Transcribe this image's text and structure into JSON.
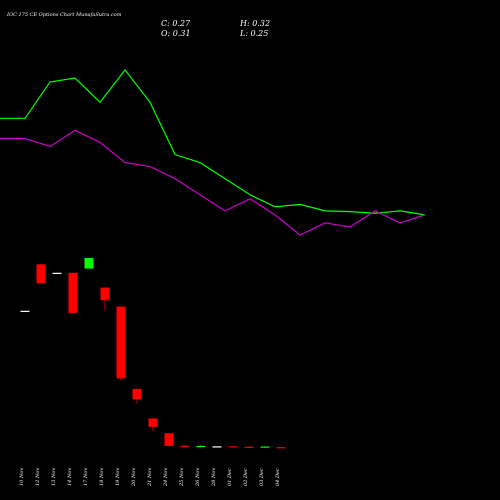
{
  "chart_data": {
    "type": "candlestick",
    "title": "IOC 175 CE Options Chart MunafaSutra.com",
    "ohlc_readout": {
      "close": "C: 0.27",
      "open": "O: 0.31",
      "high": "H: 0.32",
      "low": "L: 0.25"
    },
    "categories": [
      "10 Nov",
      "12 Nov",
      "13 Nov",
      "14 Nov",
      "17 Nov",
      "18 Nov",
      "19 Nov",
      "20 Nov",
      "21 Nov",
      "24 Nov",
      "25 Nov",
      "26 Nov",
      "28 Nov",
      "01 Dec",
      "02 Dec",
      "03 Dec",
      "04 Dec"
    ],
    "candles": [
      {
        "o": 6.7,
        "h": 6.7,
        "l": 6.7,
        "c": 6.7
      },
      {
        "o": 8.9,
        "h": 8.9,
        "l": 8.0,
        "c": 8.0
      },
      {
        "o": 8.5,
        "h": 8.5,
        "l": 8.5,
        "c": 8.5
      },
      {
        "o": 8.5,
        "h": 8.5,
        "l": 6.6,
        "c": 6.6
      },
      {
        "o": 8.7,
        "h": 9.2,
        "l": 8.7,
        "c": 9.2
      },
      {
        "o": 7.8,
        "h": 7.8,
        "l": 6.7,
        "c": 7.2
      },
      {
        "o": 6.9,
        "h": 6.9,
        "l": 3.4,
        "c": 3.5
      },
      {
        "o": 3.0,
        "h": 3.0,
        "l": 2.3,
        "c": 2.5
      },
      {
        "o": 1.6,
        "h": 1.6,
        "l": 1.0,
        "c": 1.2
      },
      {
        "o": 0.9,
        "h": 0.9,
        "l": 0.28,
        "c": 0.3
      },
      {
        "o": 0.31,
        "h": 0.32,
        "l": 0.25,
        "c": 0.27
      },
      {
        "o": 0.28,
        "h": 0.33,
        "l": 0.27,
        "c": 0.3
      },
      {
        "o": 0.28,
        "h": 0.28,
        "l": 0.28,
        "c": 0.28
      },
      {
        "o": 0.28,
        "h": 0.28,
        "l": 0.25,
        "c": 0.26
      },
      {
        "o": 0.26,
        "h": 0.26,
        "l": 0.23,
        "c": 0.24
      },
      {
        "o": 0.22,
        "h": 0.28,
        "l": 0.22,
        "c": 0.27
      },
      {
        "o": 0.24,
        "h": 0.24,
        "l": 0.21,
        "c": 0.22
      }
    ],
    "upper_line": {
      "color": "#00ff00",
      "values": [
        30.0,
        30.0,
        34.5,
        35.0,
        32.0,
        36.0,
        32.0,
        25.5,
        24.5,
        22.5,
        20.5,
        19.0,
        19.3,
        18.5,
        18.4,
        18.2,
        18.5,
        18.0
      ]
    },
    "lower_line": {
      "color": "#cc00cc",
      "values": [
        27.5,
        27.5,
        26.5,
        28.5,
        27.0,
        24.5,
        24.0,
        22.5,
        20.5,
        18.5,
        20.0,
        18.0,
        15.5,
        17.0,
        16.5,
        18.5,
        17.0,
        18.0
      ]
    },
    "up_color": "#00ff00",
    "down_color": "#ff0000",
    "grid": false,
    "background": "#000000"
  }
}
